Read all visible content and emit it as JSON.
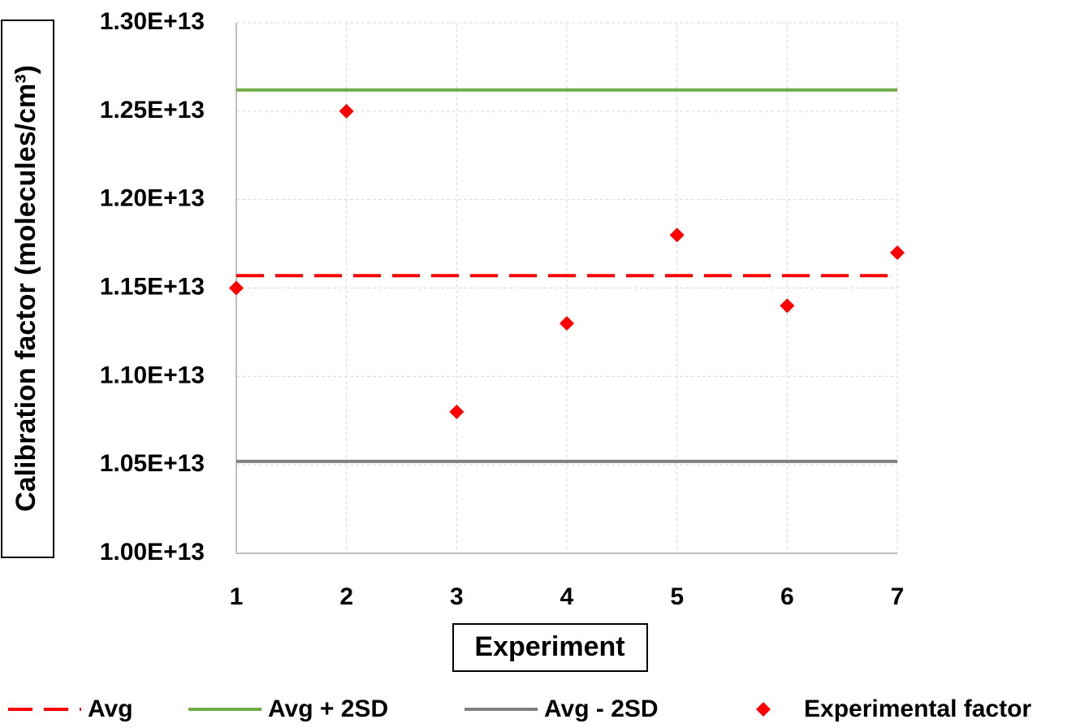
{
  "chart_data": {
    "type": "scatter",
    "xlabel": "Experiment",
    "ylabel": "Calibration factor (molecules/cm³)",
    "xlim": [
      1,
      7
    ],
    "xticks": [
      1,
      2,
      3,
      4,
      5,
      6,
      7
    ],
    "ylim": [
      10000000000000.0,
      13000000000000.0
    ],
    "yticks": [
      {
        "value": 10000000000000.0,
        "label": "1.00E+13"
      },
      {
        "value": 10500000000000.0,
        "label": "1.05E+13"
      },
      {
        "value": 11000000000000.0,
        "label": "1.10E+13"
      },
      {
        "value": 11500000000000.0,
        "label": "1.15E+13"
      },
      {
        "value": 12000000000000.0,
        "label": "1.20E+13"
      },
      {
        "value": 12500000000000.0,
        "label": "1.25E+13"
      },
      {
        "value": 13000000000000.0,
        "label": "1.30E+13"
      }
    ],
    "grid": true,
    "legend": "bottom",
    "series": [
      {
        "name": "Avg",
        "kind": "line",
        "dashed": true,
        "color": "#ff0000",
        "x": [
          1,
          7
        ],
        "values": [
          11570000000000.0,
          11570000000000.0
        ]
      },
      {
        "name": "Avg + 2SD",
        "kind": "line",
        "dashed": false,
        "color": "#70ad47",
        "x": [
          1,
          7
        ],
        "values": [
          12620000000000.0,
          12620000000000.0
        ]
      },
      {
        "name": "Avg - 2SD",
        "kind": "line",
        "dashed": false,
        "color": "#808080",
        "x": [
          1,
          7
        ],
        "values": [
          10520000000000.0,
          10520000000000.0
        ]
      },
      {
        "name": "Experimental factor",
        "kind": "marker",
        "color": "#ff0000",
        "x": [
          1,
          2,
          3,
          4,
          5,
          6,
          7
        ],
        "values": [
          11500000000000.0,
          12500000000000.0,
          10800000000000.0,
          11300000000000.0,
          11800000000000.0,
          11400000000000.0,
          11700000000000.0
        ]
      }
    ]
  }
}
